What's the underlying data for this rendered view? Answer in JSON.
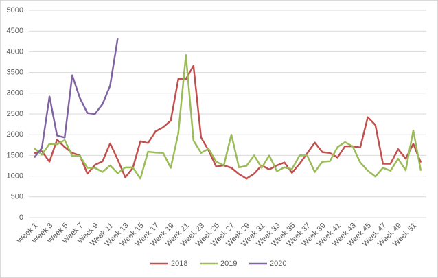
{
  "chart_data": {
    "type": "line",
    "categories": [
      "Week 1",
      null,
      "Week 3",
      null,
      "Week 5",
      null,
      "Week 7",
      null,
      "Week 9",
      null,
      "Week 11",
      null,
      "Week 13",
      null,
      "Week 15",
      null,
      "Week 17",
      null,
      "Week 19",
      null,
      "Week 21",
      null,
      "Week 23",
      null,
      "Week 25",
      null,
      "Week 27",
      null,
      "Week 29",
      null,
      "Week 31",
      null,
      "Week 33",
      null,
      "Week 35",
      null,
      "Week 37",
      null,
      "Week 39",
      null,
      "Week 41",
      null,
      "Week 43",
      null,
      "Week 45",
      null,
      "Week 47",
      null,
      "Week 49",
      null,
      "Week 51",
      null
    ],
    "series": [
      {
        "name": "2018",
        "color": "#c0504d",
        "values": [
          1550,
          1600,
          1350,
          1880,
          1700,
          1560,
          1500,
          1060,
          1270,
          1360,
          1790,
          1400,
          970,
          1200,
          1840,
          1800,
          2080,
          2180,
          2340,
          3340,
          3340,
          3660,
          1930,
          1620,
          1230,
          1260,
          1200,
          1050,
          940,
          1060,
          1260,
          1160,
          1260,
          1330,
          1080,
          1300,
          1550,
          1810,
          1580,
          1560,
          1450,
          1720,
          1720,
          1690,
          2420,
          2230,
          1300,
          1300,
          1650,
          1420,
          1780,
          1330
        ]
      },
      {
        "name": "2019",
        "color": "#9bbb59",
        "values": [
          1670,
          1520,
          1780,
          1770,
          1870,
          1490,
          1490,
          1200,
          1200,
          1100,
          1260,
          1070,
          1210,
          1210,
          940,
          1590,
          1570,
          1560,
          1200,
          2030,
          3920,
          1860,
          1560,
          1660,
          1350,
          1260,
          2000,
          1210,
          1250,
          1500,
          1200,
          1500,
          1120,
          1210,
          1170,
          1500,
          1500,
          1100,
          1350,
          1360,
          1700,
          1820,
          1720,
          1330,
          1130,
          990,
          1200,
          1130,
          1420,
          1140,
          2100,
          1130
        ]
      },
      {
        "name": "2020",
        "color": "#8064a2",
        "values": [
          1450,
          1680,
          2920,
          1980,
          1930,
          3430,
          2890,
          2520,
          2500,
          2740,
          3180,
          4320,
          null,
          null,
          null,
          null,
          null,
          null,
          null,
          null,
          null,
          null,
          null,
          null,
          null,
          null,
          null,
          null,
          null,
          null,
          null,
          null,
          null,
          null,
          null,
          null,
          null,
          null,
          null,
          null,
          null,
          null,
          null,
          null,
          null,
          null,
          null,
          null,
          null,
          null,
          null,
          null
        ]
      }
    ],
    "ylim": [
      0,
      5000
    ],
    "yticks": [
      0,
      500,
      1000,
      1500,
      2000,
      2500,
      3000,
      3500,
      4000,
      4500,
      5000
    ],
    "grid": true,
    "legend": "bottom"
  }
}
